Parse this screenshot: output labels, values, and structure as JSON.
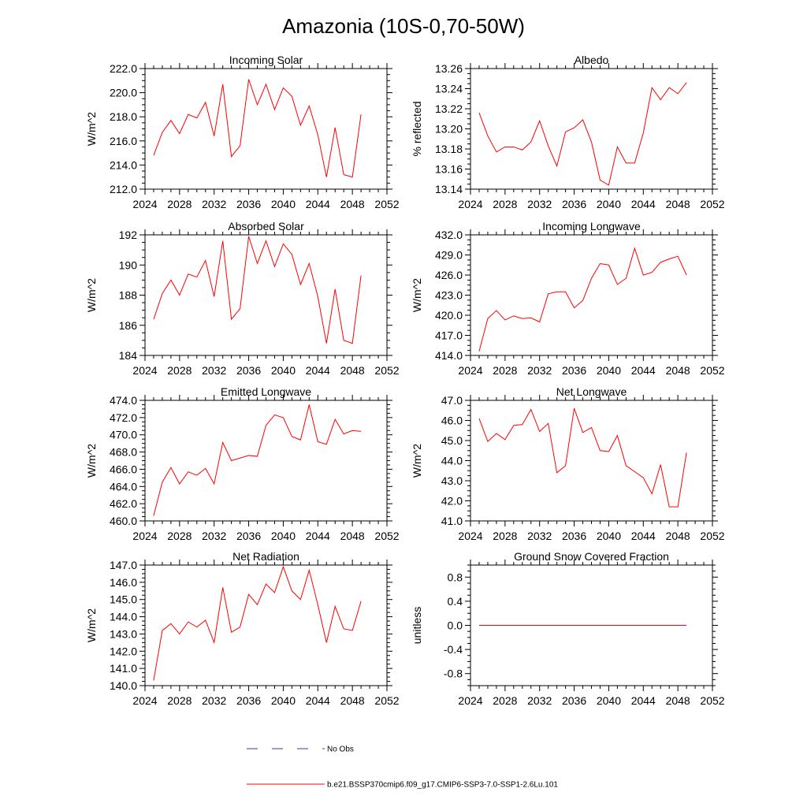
{
  "title": "Amazonia (10S-0,70-50W)",
  "legend": {
    "obs_label": "No Obs",
    "model_label": "b.e21.BSSP370cmip6.f09_g17.CMIP6-SSP3-7.0-SSP1-2.6Lu.101",
    "obs_color": "#3a3aa8",
    "model_color": "#ff0000"
  },
  "chart_data": [
    {
      "type": "line",
      "title": "Incoming Solar",
      "ylabel": "W/m^2",
      "xlim": [
        2024,
        2052
      ],
      "xticks": [
        2024,
        2028,
        2032,
        2036,
        2040,
        2044,
        2048,
        2052
      ],
      "ylim": [
        212.0,
        222.0
      ],
      "yticks": [
        "212.0",
        "214.0",
        "216.0",
        "218.0",
        "220.0",
        "222.0"
      ],
      "x": [
        2025,
        2026,
        2027,
        2028,
        2029,
        2030,
        2031,
        2032,
        2033,
        2034,
        2035,
        2036,
        2037,
        2038,
        2039,
        2040,
        2041,
        2042,
        2043,
        2044,
        2045,
        2046,
        2047,
        2048,
        2049
      ],
      "series": [
        {
          "values": [
            214.8,
            216.7,
            217.7,
            216.6,
            218.2,
            217.9,
            219.2,
            216.4,
            220.7,
            214.7,
            215.6,
            221.1,
            219.0,
            220.7,
            218.6,
            220.4,
            219.7,
            217.3,
            218.9,
            216.5,
            213.0,
            217.1,
            213.2,
            213.0,
            218.2
          ]
        }
      ]
    },
    {
      "type": "line",
      "title": "Albedo",
      "ylabel": "% reflected",
      "xlim": [
        2024,
        2052
      ],
      "xticks": [
        2024,
        2028,
        2032,
        2036,
        2040,
        2044,
        2048,
        2052
      ],
      "ylim": [
        13.14,
        13.26
      ],
      "yticks": [
        "13.14",
        "13.16",
        "13.18",
        "13.20",
        "13.22",
        "13.24",
        "13.26"
      ],
      "x": [
        2025,
        2026,
        2027,
        2028,
        2029,
        2030,
        2031,
        2032,
        2033,
        2034,
        2035,
        2036,
        2037,
        2038,
        2039,
        2040,
        2041,
        2042,
        2043,
        2044,
        2045,
        2046,
        2047,
        2048,
        2049
      ],
      "series": [
        {
          "values": [
            13.216,
            13.193,
            13.177,
            13.182,
            13.182,
            13.179,
            13.187,
            13.208,
            13.183,
            13.163,
            13.197,
            13.201,
            13.209,
            13.187,
            13.149,
            13.144,
            13.182,
            13.166,
            13.166,
            13.196,
            13.241,
            13.229,
            13.241,
            13.235,
            13.246
          ]
        }
      ]
    },
    {
      "type": "line",
      "title": "Absorbed Solar",
      "ylabel": "W/m^2",
      "xlim": [
        2024,
        2052
      ],
      "xticks": [
        2024,
        2028,
        2032,
        2036,
        2040,
        2044,
        2048,
        2052
      ],
      "ylim": [
        184,
        192
      ],
      "yticks": [
        "184",
        "186",
        "188",
        "190",
        "192"
      ],
      "x": [
        2025,
        2026,
        2027,
        2028,
        2029,
        2030,
        2031,
        2032,
        2033,
        2034,
        2035,
        2036,
        2037,
        2038,
        2039,
        2040,
        2041,
        2042,
        2043,
        2044,
        2045,
        2046,
        2047,
        2048,
        2049
      ],
      "series": [
        {
          "values": [
            186.4,
            188.1,
            189.0,
            188.0,
            189.4,
            189.2,
            190.3,
            187.9,
            191.6,
            186.4,
            187.1,
            191.9,
            190.1,
            191.6,
            189.9,
            191.4,
            190.7,
            188.7,
            190.1,
            187.9,
            184.8,
            188.4,
            185.0,
            184.8,
            189.3
          ]
        }
      ]
    },
    {
      "type": "line",
      "title": "Incoming Longwave",
      "ylabel": "W/m^2",
      "xlim": [
        2024,
        2052
      ],
      "xticks": [
        2024,
        2028,
        2032,
        2036,
        2040,
        2044,
        2048,
        2052
      ],
      "ylim": [
        414.0,
        432.0
      ],
      "yticks": [
        "414.0",
        "417.0",
        "420.0",
        "423.0",
        "426.0",
        "429.0",
        "432.0"
      ],
      "x": [
        2025,
        2026,
        2027,
        2028,
        2029,
        2030,
        2031,
        2032,
        2033,
        2034,
        2035,
        2036,
        2037,
        2038,
        2039,
        2040,
        2041,
        2042,
        2043,
        2044,
        2045,
        2046,
        2047,
        2048,
        2049
      ],
      "series": [
        {
          "values": [
            414.6,
            419.5,
            420.7,
            419.3,
            419.9,
            419.5,
            419.6,
            419.0,
            423.2,
            423.5,
            423.5,
            421.1,
            422.2,
            425.5,
            427.7,
            427.5,
            424.6,
            425.5,
            430.0,
            426.0,
            426.4,
            427.9,
            428.4,
            428.8,
            426.0
          ]
        }
      ]
    },
    {
      "type": "line",
      "title": "Emitted Longwave",
      "ylabel": "W/m^2",
      "xlim": [
        2024,
        2052
      ],
      "xticks": [
        2024,
        2028,
        2032,
        2036,
        2040,
        2044,
        2048,
        2052
      ],
      "ylim": [
        460.0,
        474.0
      ],
      "yticks": [
        "460.0",
        "462.0",
        "464.0",
        "466.0",
        "468.0",
        "470.0",
        "472.0",
        "474.0"
      ],
      "x": [
        2025,
        2026,
        2027,
        2028,
        2029,
        2030,
        2031,
        2032,
        2033,
        2034,
        2035,
        2036,
        2037,
        2038,
        2039,
        2040,
        2041,
        2042,
        2043,
        2044,
        2045,
        2046,
        2047,
        2048,
        2049
      ],
      "series": [
        {
          "values": [
            460.6,
            464.5,
            466.2,
            464.3,
            465.7,
            465.3,
            466.1,
            464.3,
            469.1,
            467.0,
            467.3,
            467.6,
            467.5,
            471.1,
            472.3,
            472.0,
            469.8,
            469.4,
            473.5,
            469.2,
            468.9,
            471.8,
            470.1,
            470.5,
            470.4
          ]
        }
      ]
    },
    {
      "type": "line",
      "title": "Net Longwave",
      "ylabel": "W/m^2",
      "xlim": [
        2024,
        2052
      ],
      "xticks": [
        2024,
        2028,
        2032,
        2036,
        2040,
        2044,
        2048,
        2052
      ],
      "ylim": [
        41.0,
        47.0
      ],
      "yticks": [
        "41.0",
        "42.0",
        "43.0",
        "44.0",
        "45.0",
        "46.0",
        "47.0"
      ],
      "x": [
        2025,
        2026,
        2027,
        2028,
        2029,
        2030,
        2031,
        2032,
        2033,
        2034,
        2035,
        2036,
        2037,
        2038,
        2039,
        2040,
        2041,
        2042,
        2043,
        2044,
        2045,
        2046,
        2047,
        2048,
        2049
      ],
      "series": [
        {
          "values": [
            46.1,
            44.95,
            45.35,
            45.05,
            45.75,
            45.8,
            46.55,
            45.45,
            45.85,
            43.4,
            43.75,
            46.6,
            45.4,
            45.65,
            44.5,
            44.45,
            45.25,
            43.75,
            43.45,
            43.15,
            42.35,
            43.8,
            41.7,
            41.7,
            44.4
          ]
        }
      ]
    },
    {
      "type": "line",
      "title": "Net Radiation",
      "ylabel": "W/m^2",
      "xlim": [
        2024,
        2052
      ],
      "xticks": [
        2024,
        2028,
        2032,
        2036,
        2040,
        2044,
        2048,
        2052
      ],
      "ylim": [
        140.0,
        147.0
      ],
      "yticks": [
        "140.0",
        "141.0",
        "142.0",
        "143.0",
        "144.0",
        "145.0",
        "146.0",
        "147.0"
      ],
      "x": [
        2025,
        2026,
        2027,
        2028,
        2029,
        2030,
        2031,
        2032,
        2033,
        2034,
        2035,
        2036,
        2037,
        2038,
        2039,
        2040,
        2041,
        2042,
        2043,
        2044,
        2045,
        2046,
        2047,
        2048,
        2049
      ],
      "series": [
        {
          "values": [
            140.3,
            143.2,
            143.6,
            143.0,
            143.7,
            143.4,
            143.8,
            142.5,
            145.7,
            143.1,
            143.4,
            145.3,
            144.7,
            145.9,
            145.4,
            146.9,
            145.5,
            145.0,
            146.7,
            144.7,
            142.5,
            144.6,
            143.3,
            143.2,
            144.9
          ]
        }
      ]
    },
    {
      "type": "line",
      "title": "Ground Snow Covered Fraction",
      "ylabel": "unitless",
      "xlim": [
        2024,
        2052
      ],
      "xticks": [
        2024,
        2028,
        2032,
        2036,
        2040,
        2044,
        2048,
        2052
      ],
      "ylim": [
        -1.0,
        1.0
      ],
      "yticks": [
        "-0.8",
        "-0.4",
        "0.0",
        "0.4",
        "0.8"
      ],
      "ytick_values": [
        -0.8,
        -0.4,
        0.0,
        0.4,
        0.8
      ],
      "x": [
        2025,
        2026,
        2027,
        2028,
        2029,
        2030,
        2031,
        2032,
        2033,
        2034,
        2035,
        2036,
        2037,
        2038,
        2039,
        2040,
        2041,
        2042,
        2043,
        2044,
        2045,
        2046,
        2047,
        2048,
        2049
      ],
      "series": [
        {
          "values": [
            0,
            0,
            0,
            0,
            0,
            0,
            0,
            0,
            0,
            0,
            0,
            0,
            0,
            0,
            0,
            0,
            0,
            0,
            0,
            0,
            0,
            0,
            0,
            0,
            0
          ]
        }
      ]
    }
  ]
}
